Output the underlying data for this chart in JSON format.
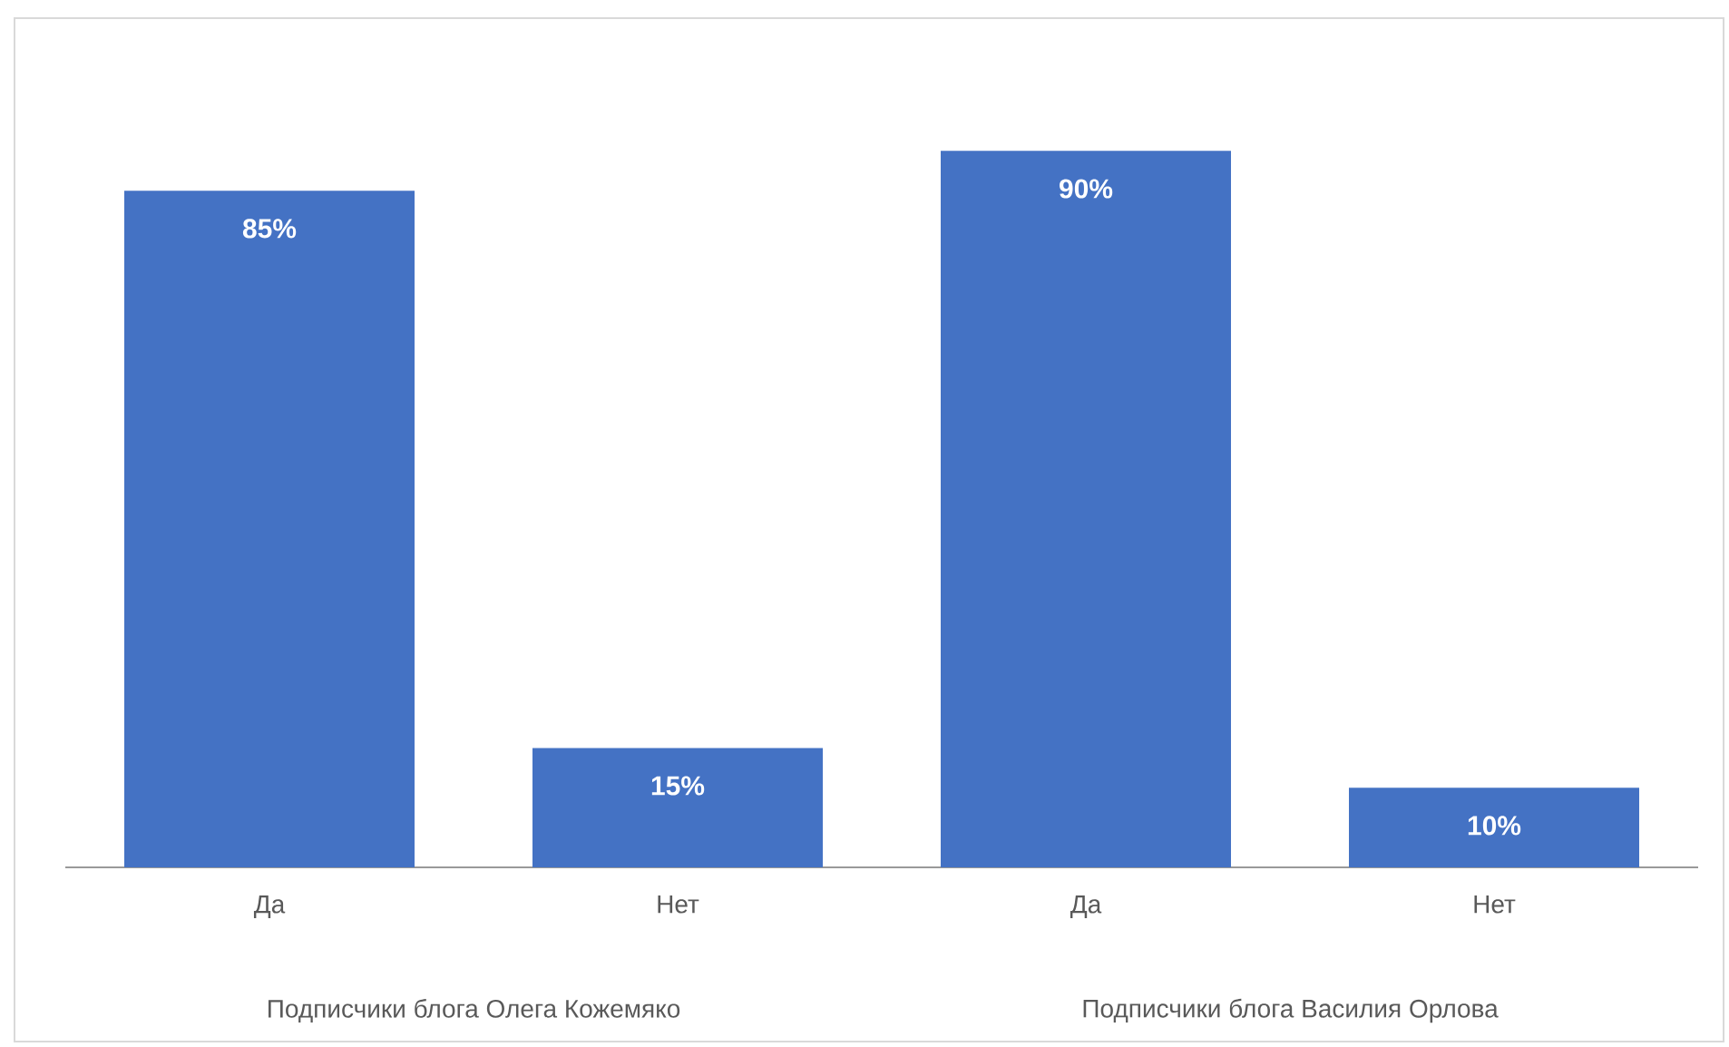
{
  "chart_data": {
    "type": "bar",
    "categories": [
      "Да",
      "Нет",
      "Да",
      "Нет"
    ],
    "values": [
      85,
      15,
      90,
      10
    ],
    "value_labels": [
      "85%",
      "15%",
      "90%",
      "10%"
    ],
    "color": "#4472c4",
    "annotations": [
      "Подписчики блога Олега Кожемяко",
      "Подписчики блога Василия Орлова"
    ]
  }
}
